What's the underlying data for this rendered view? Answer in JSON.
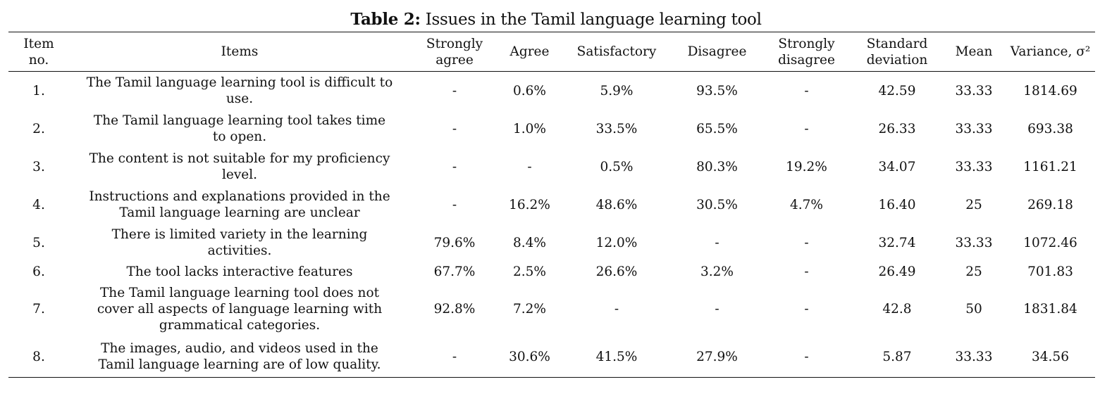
{
  "title": {
    "label": "Table 2:",
    "text": " Issues in the Tamil language learning tool"
  },
  "columns": [
    "Item no.",
    "Items",
    "Strongly agree",
    "Agree",
    "Satisfactory",
    "Disagree",
    "Strongly disagree",
    "Standard deviation",
    "Mean",
    "Variance, σ²"
  ],
  "rows": [
    [
      "1.",
      "The Tamil language learning tool is difficult to use.",
      "-",
      "0.6%",
      "5.9%",
      "93.5%",
      "-",
      "42.59",
      "33.33",
      "1814.69"
    ],
    [
      "2.",
      "The Tamil language learning tool takes time to open.",
      "-",
      "1.0%",
      "33.5%",
      "65.5%",
      "-",
      "26.33",
      "33.33",
      "693.38"
    ],
    [
      "3.",
      "The content is not suitable for my proficiency level.",
      "-",
      "-",
      "0.5%",
      "80.3%",
      "19.2%",
      "34.07",
      "33.33",
      "1161.21"
    ],
    [
      "4.",
      "Instructions and explanations provided in the Tamil language learning are unclear",
      "-",
      "16.2%",
      "48.6%",
      "30.5%",
      "4.7%",
      "16.40",
      "25",
      "269.18"
    ],
    [
      "5.",
      "There is limited variety in the learning activities.",
      "79.6%",
      "8.4%",
      "12.0%",
      "-",
      "-",
      "32.74",
      "33.33",
      "1072.46"
    ],
    [
      "6.",
      "The tool lacks interactive features",
      "67.7%",
      "2.5%",
      "26.6%",
      "3.2%",
      "-",
      "26.49",
      "25",
      "701.83"
    ],
    [
      "7.",
      "The Tamil language learning tool does not cover all aspects of language learning with grammatical categories.",
      "92.8%",
      "7.2%",
      "-",
      "-",
      "-",
      "42.8",
      "50",
      "1831.84"
    ],
    [
      "8.",
      "The images, audio, and videos used in the Tamil language learning are of low quality.",
      "-",
      "30.6%",
      "41.5%",
      "27.9%",
      "-",
      "5.87",
      "33.33",
      "34.56"
    ]
  ]
}
